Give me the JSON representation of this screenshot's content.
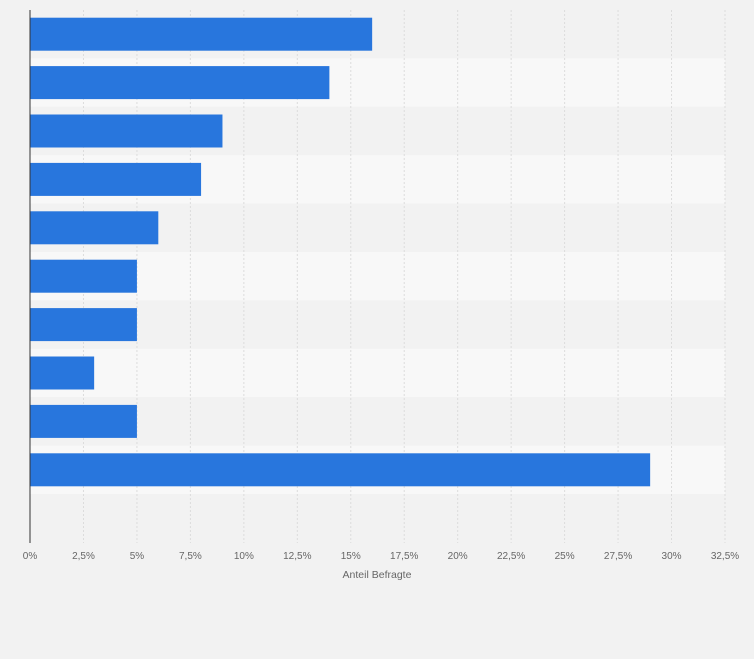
{
  "chart_data": {
    "type": "bar",
    "orientation": "horizontal",
    "categories": [
      "",
      "",
      "",
      "",
      "",
      "",
      "",
      "",
      "",
      ""
    ],
    "values": [
      16,
      14,
      9,
      8,
      6,
      5,
      5,
      3,
      5,
      29
    ],
    "xlabel": "Anteil Befragte",
    "ylabel": "",
    "xlim": [
      0,
      32.5
    ],
    "xticks": [
      "0%",
      "2,5%",
      "5%",
      "7,5%",
      "10%",
      "12,5%",
      "15%",
      "17,5%",
      "20%",
      "22,5%",
      "25%",
      "27,5%",
      "30%",
      "32,5%"
    ],
    "grid": true,
    "legend": "none",
    "colors": {
      "bar": "#2876dd",
      "band_dark": "#f2f2f2",
      "band_light": "#f8f8f8",
      "grid": "#dcdcdc",
      "axis": "#333333",
      "text": "#666666"
    }
  }
}
